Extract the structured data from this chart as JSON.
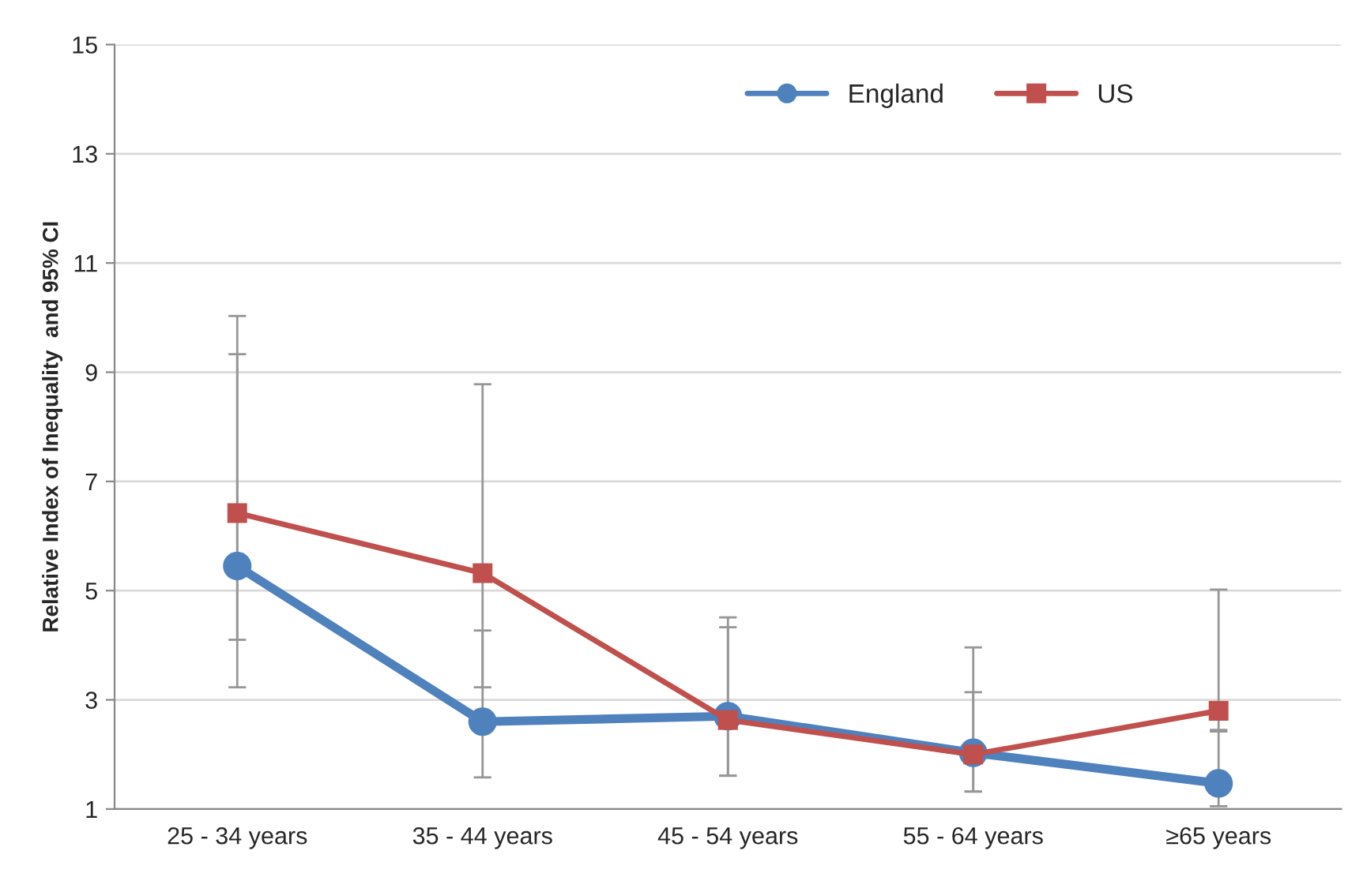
{
  "chart_data": {
    "type": "line",
    "ylabel": "Relative Index of Inequality  and 95% CI",
    "categories": [
      "25 - 34 years",
      "35 - 44 years",
      "45 - 54 years",
      "55 - 64 years",
      "≥65 years"
    ],
    "series": [
      {
        "name": "England",
        "color": "#4f81bd",
        "marker": "circle",
        "values": [
          5.45,
          2.6,
          2.7,
          2.03,
          1.47
        ],
        "errors": [
          [
            4.1,
            9.33
          ],
          [
            1.58,
            4.27
          ],
          [
            1.61,
            4.33
          ],
          [
            1.32,
            3.14
          ],
          [
            1.05,
            2.42
          ]
        ]
      },
      {
        "name": "US",
        "color": "#c0504d",
        "marker": "square",
        "values": [
          6.42,
          5.32,
          2.63,
          2.0,
          2.8
        ],
        "errors": [
          [
            3.23,
            10.03
          ],
          [
            3.23,
            8.78
          ],
          [
            1.61,
            4.51
          ],
          [
            1.32,
            3.96
          ],
          [
            2.45,
            5.02
          ]
        ]
      }
    ],
    "ylim": [
      1,
      15
    ],
    "yticks": [
      1,
      3,
      5,
      7,
      9,
      11,
      13,
      15
    ],
    "grid": "y",
    "legend": "top right",
    "line_style": "solid"
  }
}
